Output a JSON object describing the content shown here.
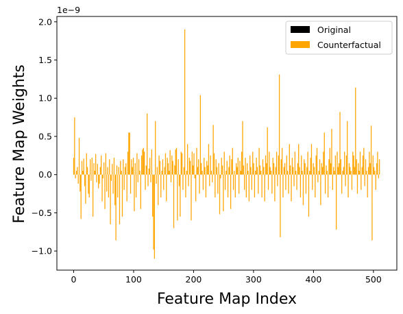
{
  "chart_data": {
    "type": "bar",
    "title": "",
    "xlabel": "Feature Map Index",
    "ylabel": "Feature Map Weights",
    "y_offset_label": "1e−9",
    "xlim": [
      -28,
      539
    ],
    "ylim": [
      -1.25,
      2.07
    ],
    "xticks": [
      0,
      100,
      200,
      300,
      400,
      500
    ],
    "xtick_labels": [
      "0",
      "100",
      "200",
      "300",
      "400",
      "500"
    ],
    "yticks": [
      -1.0,
      -0.5,
      0.0,
      0.5,
      1.0,
      1.5,
      2.0
    ],
    "ytick_labels": [
      "−1.0",
      "−0.5",
      "0.0",
      "0.5",
      "1.0",
      "1.5",
      "2.0"
    ],
    "grid": false,
    "legend_position": "top-right",
    "series": [
      {
        "name": "Original",
        "color": "#000000",
        "values": []
      },
      {
        "name": "Counterfactual",
        "color": "#ffa500",
        "x_start": 0,
        "values": [
          0.22,
          0.75,
          -0.05,
          0.05,
          0.1,
          -0.12,
          0.48,
          -0.22,
          -0.58,
          0.18,
          0.05,
          0.21,
          -0.15,
          -0.38,
          0.28,
          0.1,
          -0.25,
          -0.3,
          0.2,
          -0.08,
          0.22,
          -0.55,
          0.15,
          0.05,
          0.27,
          -0.1,
          0.14,
          -0.18,
          -0.12,
          0.1,
          0.25,
          -0.35,
          -0.05,
          0.16,
          -0.45,
          0.28,
          -0.22,
          0.1,
          -0.3,
          0.2,
          -0.65,
          -0.08,
          0.14,
          -0.25,
          0.22,
          -0.4,
          -0.86,
          0.12,
          -0.3,
          0.1,
          -0.65,
          0.18,
          0.05,
          -0.55,
          0.2,
          -0.2,
          0.1,
          0.15,
          -0.35,
          0.3,
          0.55,
          0.55,
          -0.25,
          0.2,
          0.1,
          0.22,
          -0.48,
          0.15,
          -0.3,
          0.28,
          -0.1,
          0.2,
          0.05,
          -0.45,
          0.25,
          0.33,
          0.35,
          0.3,
          -0.2,
          0.12,
          0.8,
          -0.15,
          0.08,
          0.22,
          -0.1,
          0.33,
          -0.55,
          -0.98,
          -1.1,
          0.7,
          -0.12,
          0.1,
          -0.4,
          0.25,
          0.18,
          -0.3,
          0.05,
          0.2,
          -0.2,
          0.1,
          0.28,
          -0.35,
          0.22,
          0.15,
          0.05,
          0.32,
          -0.1,
          0.25,
          0.18,
          -0.7,
          0.12,
          0.33,
          0.35,
          -0.6,
          0.2,
          -0.15,
          -0.55,
          0.3,
          0.28,
          -0.2,
          0.1,
          1.9,
          -0.3,
          0.05,
          0.4,
          -0.15,
          0.22,
          0.18,
          -0.6,
          0.3,
          0.12,
          0.28,
          -0.05,
          -0.35,
          0.35,
          0.1,
          0.2,
          -0.25,
          1.04,
          0.15,
          0.05,
          -0.2,
          0.22,
          0.1,
          -0.3,
          0.18,
          0.12,
          0.4,
          -0.15,
          0.25,
          0.05,
          -0.1,
          0.65,
          0.28,
          -0.3,
          0.2,
          0.1,
          -0.25,
          0.15,
          -0.52,
          -0.05,
          0.22,
          0.12,
          -0.48,
          0.3,
          -0.2,
          0.05,
          0.18,
          -0.3,
          0.1,
          0.25,
          -0.45,
          0.2,
          0.35,
          -0.2,
          0.05,
          -0.3,
          0.15,
          0.1,
          0.22,
          -0.25,
          0.18,
          0.05,
          0.3,
          0.7,
          0.12,
          -0.2,
          0.22,
          -0.3,
          0.15,
          0.05,
          -0.35,
          0.25,
          0.1,
          -0.2,
          0.3,
          0.15,
          -0.3,
          0.05,
          0.22,
          0.1,
          -0.25,
          0.35,
          0.12,
          0.05,
          -0.3,
          0.2,
          0.1,
          -0.35,
          0.25,
          0.15,
          0.62,
          -0.2,
          0.3,
          0.1,
          0.05,
          -0.25,
          0.22,
          0.15,
          -0.35,
          0.1,
          0.3,
          -0.15,
          0.25,
          1.31,
          -0.82,
          0.2,
          0.35,
          -0.3,
          0.1,
          0.15,
          -0.2,
          0.25,
          0.05,
          -0.25,
          0.4,
          0.12,
          -0.35,
          0.22,
          0.1,
          -0.15,
          0.3,
          0.05,
          -0.2,
          0.15,
          0.4,
          0.1,
          -0.3,
          0.25,
          0.05,
          -0.4,
          0.2,
          0.15,
          -0.25,
          0.1,
          0.3,
          -0.55,
          0.05,
          0.22,
          0.4,
          -0.2,
          0.15,
          0.1,
          -0.3,
          0.25,
          0.35,
          -0.1,
          0.05,
          0.2,
          -0.4,
          0.15,
          0.1,
          0.3,
          0.55,
          -0.25,
          0.12,
          0.05,
          -0.3,
          0.2,
          0.35,
          0.15,
          0.6,
          -0.2,
          0.1,
          0.05,
          0.25,
          -0.72,
          0.3,
          0.1,
          0.15,
          0.82,
          0.2,
          -0.25,
          0.05,
          0.1,
          0.3,
          -0.15,
          0.25,
          0.7,
          -0.3,
          0.15,
          0.1,
          0.05,
          -0.2,
          0.3,
          0.25,
          0.1,
          1.14,
          0.2,
          -0.25,
          0.15,
          0.05,
          0.3,
          -0.2,
          0.1,
          0.25,
          0.35,
          -0.15,
          0.2,
          0.05,
          -0.3,
          0.1,
          0.3,
          0.15,
          0.64,
          -0.86,
          0.25,
          0.1,
          0.05,
          -0.2,
          0.15,
          0.3,
          -0.05,
          0.2
        ]
      }
    ]
  }
}
